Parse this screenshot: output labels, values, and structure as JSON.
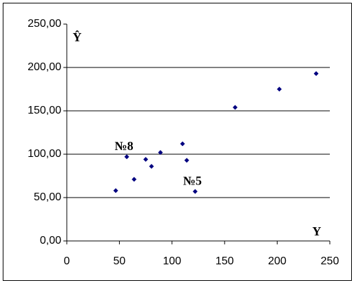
{
  "chart_data": {
    "type": "scatter",
    "x_label": "Y",
    "y_label": "Ŷ",
    "x": [
      46.5,
      57,
      64,
      75,
      80.5,
      89,
      110,
      114,
      122,
      160,
      202,
      237
    ],
    "values": [
      58,
      97,
      71,
      94,
      86,
      102,
      112,
      93,
      57,
      154,
      175,
      193
    ],
    "color": "#000080",
    "xlim": [
      0,
      250
    ],
    "xticks": [
      0,
      50,
      100,
      150,
      200,
      250
    ],
    "ylim": [
      0,
      250
    ],
    "yticks": [
      {
        "value": 0,
        "label": "0,00"
      },
      {
        "value": 50,
        "label": "50,00"
      },
      {
        "value": 100,
        "label": "100,00"
      },
      {
        "value": 150,
        "label": "150,00"
      },
      {
        "value": 200,
        "label": "200,00"
      },
      {
        "value": 250,
        "label": "250,00"
      }
    ],
    "grid": true,
    "annotations": [
      {
        "text": "№8",
        "x": 57,
        "y": 97
      },
      {
        "text": "№5",
        "x": 122,
        "y": 57
      }
    ]
  }
}
